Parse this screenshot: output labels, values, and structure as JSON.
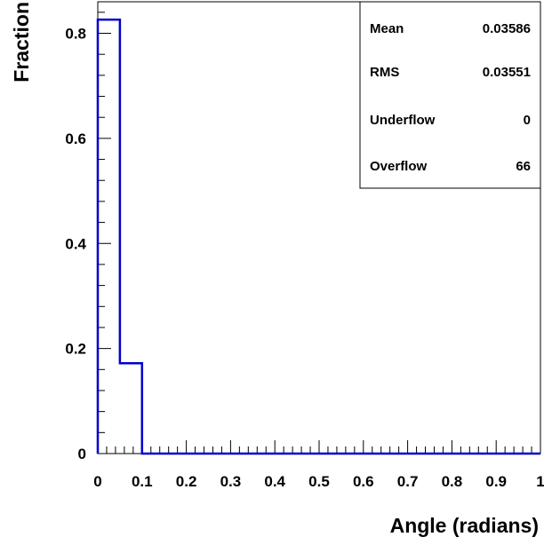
{
  "chart_data": {
    "type": "histogram",
    "title": "",
    "xlabel": "Angle (radians)",
    "ylabel": "Fraction",
    "xlim": [
      0,
      1
    ],
    "ylim": [
      0,
      0.86
    ],
    "x_ticks": [
      "0",
      "0.1",
      "0.2",
      "0.3",
      "0.4",
      "0.5",
      "0.6",
      "0.7",
      "0.8",
      "0.9",
      "1"
    ],
    "y_ticks": [
      "0",
      "0.2",
      "0.4",
      "0.6",
      "0.8"
    ],
    "bin_width": 0.05,
    "bin_edges": [
      0,
      0.05,
      0.1,
      0.15,
      0.2,
      0.25,
      0.3,
      0.35,
      0.4,
      0.45,
      0.5,
      0.55,
      0.6,
      0.65,
      0.7,
      0.75,
      0.8,
      0.85,
      0.9,
      0.95,
      1.0
    ],
    "values": [
      0.826,
      0.172,
      0,
      0,
      0,
      0,
      0,
      0,
      0,
      0,
      0,
      0,
      0,
      0,
      0,
      0,
      0,
      0,
      0,
      0
    ],
    "line_color": "#0000cc",
    "stats_box": {
      "rows": [
        {
          "label": "Mean",
          "value": "0.03586"
        },
        {
          "label": "RMS",
          "value": "0.03551"
        },
        {
          "label": "Underflow",
          "value": "0"
        },
        {
          "label": "Overflow",
          "value": "66"
        }
      ]
    }
  }
}
